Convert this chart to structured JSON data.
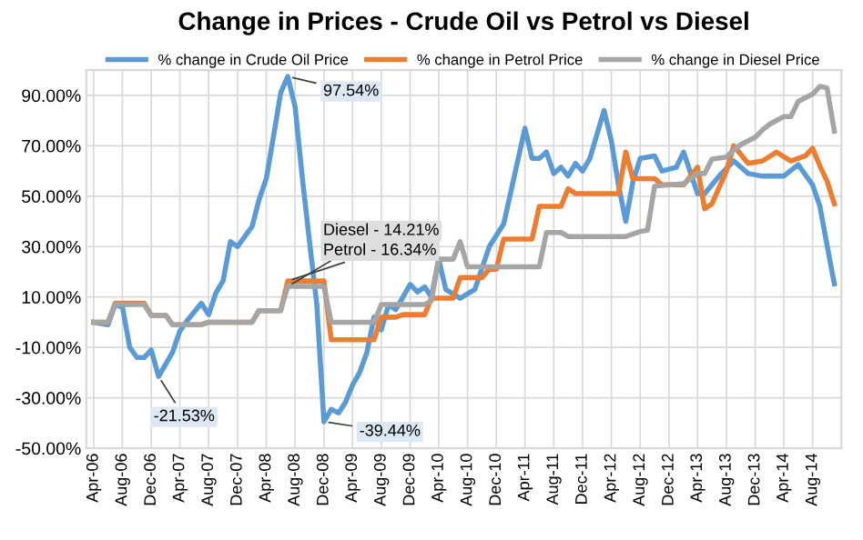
{
  "chart_data": {
    "type": "line",
    "title": "Change in Prices - Crude Oil vs Petrol vs Diesel",
    "series": [
      {
        "name": "% change in Crude Oil Price",
        "color": "#5b9bd5",
        "x": [
          "2006-04",
          "2006-06",
          "2006-07",
          "2006-08",
          "2006-09",
          "2006-10",
          "2006-11",
          "2006-12",
          "2007-01",
          "2007-03",
          "2007-04",
          "2007-05",
          "2007-07",
          "2007-08",
          "2007-09",
          "2007-10",
          "2007-11",
          "2007-12",
          "2008-01",
          "2008-02",
          "2008-03",
          "2008-04",
          "2008-05",
          "2008-06",
          "2008-07",
          "2008-08",
          "2008-09",
          "2008-10",
          "2008-11",
          "2008-12",
          "2009-01",
          "2009-02",
          "2009-03",
          "2009-04",
          "2009-05",
          "2009-06",
          "2009-07",
          "2009-08",
          "2009-09",
          "2009-10",
          "2009-11",
          "2009-12",
          "2010-01",
          "2010-02",
          "2010-03",
          "2010-04",
          "2010-05",
          "2010-07",
          "2010-09",
          "2010-11",
          "2011-01",
          "2011-02",
          "2011-04",
          "2011-05",
          "2011-06",
          "2011-07",
          "2011-08",
          "2011-09",
          "2011-10",
          "2011-11",
          "2011-12",
          "2012-01",
          "2012-03",
          "2012-04",
          "2012-05",
          "2012-06",
          "2012-07",
          "2012-08",
          "2012-10",
          "2012-11",
          "2013-01",
          "2013-02",
          "2013-04",
          "2013-05",
          "2013-07",
          "2013-09",
          "2013-11",
          "2014-01",
          "2014-04",
          "2014-06",
          "2014-08",
          "2014-09",
          "2014-10",
          "2014-11"
        ],
        "values": [
          0,
          -1,
          7,
          6,
          -10,
          -14,
          -14,
          -11,
          -21.53,
          -12,
          -3.5,
          0.5,
          7.5,
          3,
          11.7,
          16.4,
          32,
          30,
          34,
          38,
          48.5,
          57,
          73.4,
          91,
          97.54,
          85.5,
          57,
          32,
          7,
          -39.44,
          -34.6,
          -36,
          -32,
          -25,
          -20,
          -12,
          2,
          -3,
          7,
          5,
          10,
          15,
          12,
          14,
          10,
          25,
          13,
          9.5,
          13,
          30,
          39,
          52,
          77,
          65,
          65,
          67.5,
          59,
          61.5,
          58,
          63,
          60,
          65,
          84,
          72,
          54.5,
          40,
          55.6,
          65,
          66,
          60,
          61.5,
          67.5,
          51,
          51,
          58,
          64,
          59,
          58,
          58,
          62.5,
          54.5,
          46,
          30.6,
          15.2
        ]
      },
      {
        "name": "% change in Petrol Price",
        "color": "#ed7d31",
        "x": [
          "2006-04",
          "2006-06",
          "2006-07",
          "2006-11",
          "2006-12",
          "2007-02",
          "2007-03",
          "2007-07",
          "2007-08",
          "2008-02",
          "2008-03",
          "2008-06",
          "2008-07",
          "2008-12",
          "2009-01",
          "2009-07",
          "2009-08",
          "2009-10",
          "2009-11",
          "2010-02",
          "2010-03",
          "2010-06",
          "2010-07",
          "2010-10",
          "2010-11",
          "2010-12",
          "2011-01",
          "2011-05",
          "2011-06",
          "2011-09",
          "2011-10",
          "2011-11",
          "2012-05",
          "2012-06",
          "2012-07",
          "2012-10",
          "2012-11",
          "2013-02",
          "2013-04",
          "2013-05",
          "2013-06",
          "2013-08",
          "2013-09",
          "2013-11",
          "2014-01",
          "2014-03",
          "2014-05",
          "2014-07",
          "2014-08",
          "2014-09",
          "2014-10",
          "2014-11"
        ],
        "values": [
          0,
          0,
          7.5,
          7.5,
          2.7,
          2.7,
          -1,
          -1,
          0,
          0,
          4.6,
          4.6,
          16.34,
          16.34,
          -7,
          -7,
          2,
          2,
          3,
          3,
          9.5,
          9.5,
          17.7,
          17.7,
          21,
          21,
          33,
          33,
          46,
          46,
          53,
          51,
          51,
          67.5,
          57,
          57,
          54.5,
          54.5,
          61.5,
          45,
          47,
          60,
          70,
          63,
          64,
          67.5,
          64,
          66,
          69,
          62,
          56,
          47
        ]
      },
      {
        "name": "% change in Diesel Price",
        "color": "#a5a5a5",
        "x": [
          "2006-04",
          "2006-06",
          "2006-07",
          "2006-11",
          "2006-12",
          "2007-02",
          "2007-03",
          "2007-07",
          "2007-08",
          "2008-02",
          "2008-03",
          "2008-06",
          "2008-07",
          "2008-12",
          "2009-01",
          "2009-07",
          "2009-08",
          "2010-02",
          "2010-03",
          "2010-04",
          "2010-06",
          "2010-07",
          "2010-08",
          "2011-06",
          "2011-07",
          "2011-09",
          "2011-10",
          "2012-06",
          "2012-08",
          "2012-09",
          "2012-10",
          "2013-02",
          "2013-04",
          "2013-05",
          "2013-06",
          "2013-08",
          "2013-09",
          "2013-10",
          "2013-12",
          "2014-01",
          "2014-02",
          "2014-04",
          "2014-05",
          "2014-06",
          "2014-08",
          "2014-09",
          "2014-10",
          "2014-11"
        ],
        "values": [
          0,
          0,
          7,
          7,
          2.7,
          2.7,
          -1,
          -1,
          0,
          0,
          4.6,
          4.6,
          14.21,
          14.21,
          0,
          0,
          7,
          7,
          8.5,
          25,
          25,
          32,
          22,
          22,
          35.6,
          35.6,
          34,
          34,
          36,
          36.5,
          54,
          55,
          59,
          59,
          64.7,
          65.5,
          68.3,
          70.5,
          73.4,
          76.3,
          78.6,
          81.6,
          81.6,
          87.6,
          90.5,
          93.6,
          93,
          75.8
        ]
      }
    ],
    "annotations": [
      {
        "text": "97.54%",
        "x": "2008-07",
        "y": 97.54
      },
      {
        "text": "-21.53%",
        "x": "2007-01",
        "y": -21.53
      },
      {
        "text": "-39.44%",
        "x": "2008-12",
        "y": -39.44
      },
      {
        "text": "Diesel - 14.21%",
        "x": "2008-07",
        "y": 14.21
      },
      {
        "text": "Petrol - 16.34%",
        "x": "2008-07",
        "y": 16.34
      }
    ],
    "xlim": [
      "2006-03",
      "2014-12"
    ],
    "xticks": [
      {
        "value": "2006-04",
        "label": "Apr-06"
      },
      {
        "value": "2006-08",
        "label": "Aug-06"
      },
      {
        "value": "2006-12",
        "label": "Dec-06"
      },
      {
        "value": "2007-04",
        "label": "Apr-07"
      },
      {
        "value": "2007-08",
        "label": "Aug-07"
      },
      {
        "value": "2007-12",
        "label": "Dec-07"
      },
      {
        "value": "2008-04",
        "label": "Apr-08"
      },
      {
        "value": "2008-08",
        "label": "Aug-08"
      },
      {
        "value": "2008-12",
        "label": "Dec-08"
      },
      {
        "value": "2009-04",
        "label": "Apr-09"
      },
      {
        "value": "2009-08",
        "label": "Aug-09"
      },
      {
        "value": "2009-12",
        "label": "Dec-09"
      },
      {
        "value": "2010-04",
        "label": "Apr-10"
      },
      {
        "value": "2010-08",
        "label": "Aug-10"
      },
      {
        "value": "2010-12",
        "label": "Dec-10"
      },
      {
        "value": "2011-04",
        "label": "Apr-11"
      },
      {
        "value": "2011-08",
        "label": "Aug-11"
      },
      {
        "value": "2011-12",
        "label": "Dec-11"
      },
      {
        "value": "2012-04",
        "label": "Apr-12"
      },
      {
        "value": "2012-08",
        "label": "Aug-12"
      },
      {
        "value": "2012-12",
        "label": "Dec-12"
      },
      {
        "value": "2013-04",
        "label": "Apr-13"
      },
      {
        "value": "2013-08",
        "label": "Aug-13"
      },
      {
        "value": "2013-12",
        "label": "Dec-13"
      },
      {
        "value": "2014-04",
        "label": "Apr-14"
      },
      {
        "value": "2014-08",
        "label": "Aug-14"
      }
    ],
    "ylim": [
      -50,
      100
    ],
    "yticks": [
      {
        "value": -50,
        "label": "-50.00%"
      },
      {
        "value": -30,
        "label": "-30.00%"
      },
      {
        "value": -10,
        "label": "-10.00%"
      },
      {
        "value": 10,
        "label": "10.00%"
      },
      {
        "value": 30,
        "label": "30.00%"
      },
      {
        "value": 50,
        "label": "50.00%"
      },
      {
        "value": 70,
        "label": "70.00%"
      },
      {
        "value": 90,
        "label": "90.00%"
      }
    ],
    "grid": true,
    "legend": "top",
    "marker": "none",
    "line_style": "solid"
  }
}
